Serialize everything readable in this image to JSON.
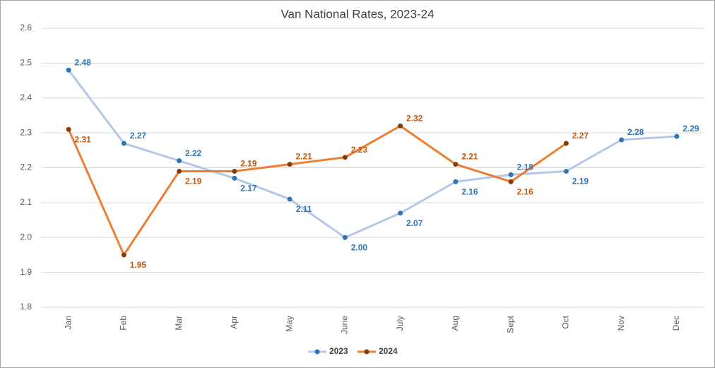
{
  "chart_data": {
    "type": "line",
    "title": "Van National Rates, 2023-24",
    "categories": [
      "Jan",
      "Feb",
      "Mar",
      "Apr",
      "May",
      "June",
      "July",
      "Aug",
      "Sept",
      "Oct",
      "Nov",
      "Dec"
    ],
    "series": [
      {
        "name": "2023",
        "color": "#b4c7e7",
        "marker_color": "#2e75b6",
        "label_color": "#2e75b6",
        "values": [
          2.48,
          2.27,
          2.22,
          2.17,
          2.11,
          2.0,
          2.07,
          2.16,
          2.18,
          2.19,
          2.28,
          2.29
        ],
        "value_labels": [
          "2.48",
          "2.27",
          "2.22",
          "2.17",
          "2.11",
          "2.00",
          "2.07",
          "2.16",
          "2.18",
          "2.19",
          "2.28",
          "2.29"
        ]
      },
      {
        "name": "2024",
        "color": "#ed7d31",
        "marker_color": "#843c0c",
        "label_color": "#c55a11",
        "values": [
          2.31,
          1.95,
          2.19,
          2.19,
          2.21,
          2.23,
          2.32,
          2.21,
          2.16,
          2.27,
          null,
          null
        ],
        "value_labels": [
          "2.31",
          "1.95",
          "2.19",
          "2.19",
          "2.21",
          "2.23",
          "2.32",
          "2.21",
          "2.16",
          "2.27",
          null,
          null
        ]
      }
    ],
    "ylim": [
      1.8,
      2.6
    ],
    "yticks": [
      1.8,
      1.9,
      {
        "value": 2.0,
        "label": "2.0"
      },
      2.1,
      2.2,
      2.3,
      2.4,
      2.5,
      2.6
    ],
    "grid": true,
    "legend": "bottom"
  }
}
